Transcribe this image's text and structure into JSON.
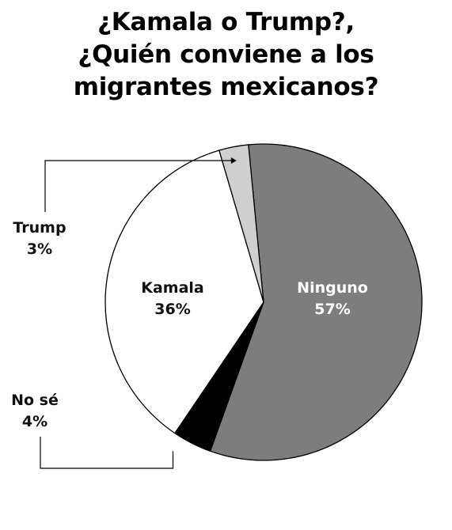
{
  "title": {
    "line1": "¿Kamala o Trump?,",
    "line2": "¿Quién conviene a los",
    "line3": "migrantes mexicanos?"
  },
  "colors": {
    "ninguno": "#7d7d7d",
    "kamala": "#ffffff",
    "trump": "#cfcfcf",
    "nose": "#000000",
    "label_light": "#ffffff",
    "label_dark": "#111111"
  },
  "chart_data": {
    "type": "pie",
    "title": "¿Kamala o Trump?, ¿Quién conviene a los migrantes mexicanos?",
    "slices": [
      {
        "label": "Ninguno",
        "value": 57,
        "display": "57%"
      },
      {
        "label": "No sé",
        "value": 4,
        "display": "4%"
      },
      {
        "label": "Kamala",
        "value": 36,
        "display": "36%"
      },
      {
        "label": "Trump",
        "value": 3,
        "display": "3%"
      }
    ]
  }
}
